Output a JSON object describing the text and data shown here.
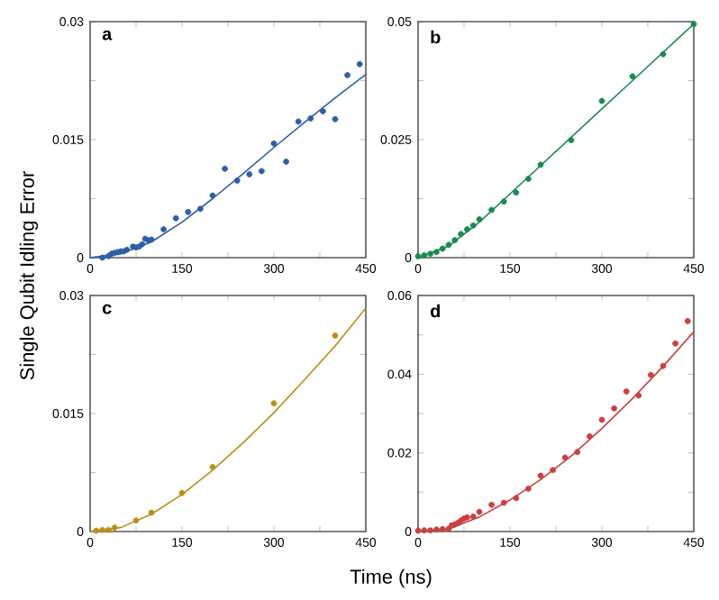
{
  "chart_data": [
    {
      "type": "scatter",
      "annotations": [
        "a"
      ],
      "ylabel": "Single Qubit Idling Error",
      "xlim": [
        0,
        450
      ],
      "ylim": [
        0,
        0.03
      ],
      "xticks": [
        0,
        {
          "value": 75,
          "label": null
        },
        150,
        {
          "value": 225,
          "label": null
        },
        300,
        {
          "value": 375,
          "label": null
        },
        450
      ],
      "yticks": [
        0,
        {
          "value": 0.0075,
          "label": null
        },
        0.015,
        {
          "value": 0.0225,
          "label": null
        },
        0.03
      ],
      "series": [
        {
          "type": "scatter",
          "marker": "circle",
          "color": "#2f5ea5",
          "x": [
            20,
            30,
            35,
            40,
            45,
            50,
            55,
            60,
            65,
            70,
            75,
            80,
            85,
            90,
            95,
            100,
            120,
            140,
            160,
            180,
            200,
            220,
            240,
            260,
            280,
            300,
            320,
            340,
            360,
            380,
            400,
            420,
            440
          ],
          "values": [
            0,
            0.0002,
            0.0005,
            0.0006,
            0.0007,
            0.0008,
            0.0008,
            0.001,
            null,
            0.0014,
            0.0013,
            0.0014,
            0.0017,
            0.0024,
            0.0022,
            0.0023,
            0.0036,
            0.005,
            0.0058,
            0.0062,
            0.0079,
            0.0113,
            0.0098,
            0.0106,
            0.011,
            0.0145,
            0.0122,
            0.0173,
            0.0177,
            0.0186,
            0.0176,
            0.0232,
            0.0246
          ]
        },
        {
          "type": "line",
          "color": "#2f5ea5",
          "x": [
            0,
            50,
            100,
            150,
            200,
            250,
            300,
            350,
            400,
            450
          ],
          "values": [
            0,
            0.0005,
            0.002,
            0.0045,
            0.0075,
            0.0107,
            0.014,
            0.0172,
            0.0203,
            0.0233
          ]
        }
      ]
    },
    {
      "type": "scatter",
      "annotations": [
        "b"
      ],
      "xlim": [
        0,
        450
      ],
      "ylim": [
        0,
        0.05
      ],
      "xticks": [
        0,
        {
          "value": 75,
          "label": null
        },
        150,
        {
          "value": 225,
          "label": null
        },
        300,
        {
          "value": 375,
          "label": null
        },
        450
      ],
      "yticks": [
        0,
        {
          "value": 0.0125,
          "label": null
        },
        0.025,
        {
          "value": 0.0375,
          "label": null
        },
        0.05
      ],
      "series": [
        {
          "type": "scatter",
          "marker": "circle",
          "color": "#1a8a50",
          "x": [
            0,
            10,
            20,
            30,
            40,
            50,
            60,
            70,
            80,
            90,
            100,
            120,
            140,
            160,
            180,
            200,
            250,
            300,
            350,
            400,
            450
          ],
          "values": [
            0.0003,
            0.0005,
            0.0008,
            0.0012,
            0.0019,
            0.0027,
            0.0037,
            0.005,
            0.006,
            0.0068,
            0.0081,
            0.0101,
            0.0119,
            0.0138,
            0.0167,
            0.0197,
            0.0249,
            0.0332,
            0.0384,
            0.0431,
            0.0495
          ]
        },
        {
          "type": "line",
          "color": "#1a8a50",
          "x": [
            0,
            50,
            100,
            150,
            200,
            250,
            300,
            350,
            400,
            450
          ],
          "values": [
            0,
            0.0025,
            0.0075,
            0.0135,
            0.0195,
            0.0255,
            0.0315,
            0.0375,
            0.0435,
            0.0495
          ]
        }
      ]
    },
    {
      "type": "scatter",
      "annotations": [
        "c"
      ],
      "xlabel": "Time (ns)",
      "xlim": [
        0,
        450
      ],
      "ylim": [
        0,
        0.03
      ],
      "xticks": [
        0,
        {
          "value": 75,
          "label": null
        },
        150,
        {
          "value": 225,
          "label": null
        },
        300,
        {
          "value": 375,
          "label": null
        },
        450
      ],
      "yticks": [
        0,
        {
          "value": 0.0075,
          "label": null
        },
        0.015,
        {
          "value": 0.0225,
          "label": null
        },
        0.03
      ],
      "series": [
        {
          "type": "scatter",
          "marker": "circle",
          "color": "#b8901a",
          "x": [
            10,
            20,
            30,
            40,
            75,
            100,
            150,
            200,
            300,
            400
          ],
          "values": [
            0.0001,
            0.0002,
            0.0002,
            0.0005,
            0.0014,
            0.0024,
            0.0049,
            0.0082,
            0.0163,
            0.0249
          ]
        },
        {
          "type": "line",
          "color": "#b8901a",
          "x": [
            0,
            50,
            100,
            150,
            200,
            250,
            300,
            350,
            400,
            450
          ],
          "values": [
            0,
            0.0005,
            0.0022,
            0.0047,
            0.0078,
            0.0113,
            0.0151,
            0.0193,
            0.0236,
            0.0284
          ]
        }
      ]
    },
    {
      "type": "scatter",
      "annotations": [
        "d"
      ],
      "xlim": [
        0,
        450
      ],
      "ylim": [
        0,
        0.06
      ],
      "xticks": [
        0,
        {
          "value": 75,
          "label": null
        },
        150,
        {
          "value": 225,
          "label": null
        },
        300,
        {
          "value": 375,
          "label": null
        },
        450
      ],
      "yticks": [
        0,
        {
          "value": 0.01,
          "label": null
        },
        0.02,
        {
          "value": 0.03,
          "label": null
        },
        0.04,
        {
          "value": 0.05,
          "label": null
        },
        0.06
      ],
      "series": [
        {
          "type": "scatter",
          "marker": "circle",
          "color": "#c8403f",
          "x": [
            0,
            10,
            20,
            30,
            40,
            50,
            55,
            60,
            65,
            70,
            75,
            80,
            85,
            90,
            100,
            120,
            140,
            160,
            180,
            200,
            220,
            240,
            260,
            280,
            300,
            320,
            340,
            360,
            380,
            400,
            420,
            440
          ],
          "values": [
            0.0002,
            0.0003,
            0.0003,
            0.0005,
            0.0006,
            0.0007,
            0.0016,
            0.0018,
            0.0022,
            0.0028,
            0.0033,
            0.0036,
            null,
            0.0038,
            0.005,
            0.0068,
            0.0073,
            0.0085,
            0.0109,
            0.0142,
            0.0156,
            0.0188,
            0.0202,
            0.0242,
            0.0284,
            0.0313,
            0.0356,
            0.0346,
            0.0398,
            0.0421,
            0.0478,
            0.0535
          ]
        },
        {
          "type": "line",
          "color": "#c8403f",
          "x": [
            0,
            50,
            100,
            150,
            200,
            250,
            300,
            350,
            400,
            450
          ],
          "values": [
            0,
            0.0006,
            0.0037,
            0.008,
            0.0132,
            0.0192,
            0.0262,
            0.0338,
            0.042,
            0.0508
          ]
        }
      ]
    }
  ]
}
